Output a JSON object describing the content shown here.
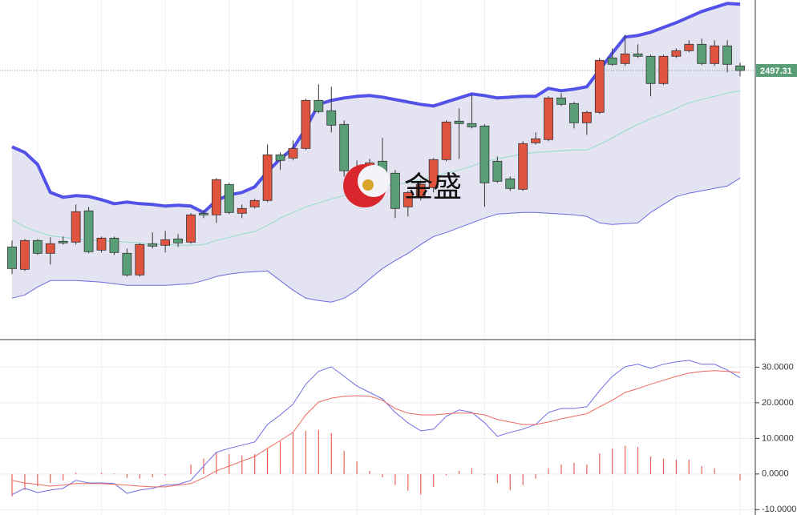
{
  "chart_data": [
    {
      "type": "candlestick",
      "watermark": "金盛",
      "ylim": [
        2162.3,
        2585.3
      ],
      "last_price": 2497.31,
      "last_price_color": "#5a9e78",
      "up_color": "#e0533f",
      "down_color": "#5a9e78",
      "band_fill": "#e3e3f1",
      "open": [
        2277,
        2249,
        2285,
        2269,
        2284,
        2283,
        2322,
        2273,
        2288,
        2269,
        2242,
        2281,
        2279,
        2287,
        2283,
        2319,
        2317,
        2355,
        2319,
        2327,
        2335,
        2392,
        2388,
        2400,
        2460,
        2447,
        2430,
        2367,
        2368,
        2384,
        2369,
        2327,
        2340,
        2351,
        2386,
        2434,
        2431,
        2428,
        2384,
        2362,
        2349,
        2407,
        2411,
        2463,
        2456,
        2432,
        2445,
        2513,
        2506,
        2518,
        2515,
        2481,
        2515,
        2522,
        2530,
        2506,
        2528,
        2503
      ],
      "high": [
        2285,
        2287,
        2287,
        2289,
        2290,
        2330,
        2327,
        2290,
        2290,
        2275,
        2282,
        2295,
        2297,
        2293,
        2319,
        2323,
        2363,
        2357,
        2330,
        2337,
        2405,
        2395,
        2410,
        2462,
        2480,
        2477,
        2435,
        2385,
        2387,
        2413,
        2373,
        2347,
        2360,
        2388,
        2435,
        2450,
        2467,
        2430,
        2390,
        2365,
        2409,
        2420,
        2465,
        2469,
        2458,
        2447,
        2513,
        2525,
        2542,
        2530,
        2517,
        2517,
        2525,
        2535,
        2537,
        2535,
        2535,
        2507
      ],
      "low": [
        2243,
        2247,
        2267,
        2255,
        2280,
        2280,
        2269,
        2270,
        2267,
        2240,
        2240,
        2275,
        2270,
        2277,
        2281,
        2313,
        2307,
        2318,
        2313,
        2325,
        2333,
        2373,
        2385,
        2398,
        2444,
        2420,
        2365,
        2330,
        2365,
        2363,
        2313,
        2315,
        2335,
        2345,
        2384,
        2387,
        2425,
        2327,
        2357,
        2347,
        2347,
        2405,
        2409,
        2453,
        2425,
        2417,
        2443,
        2503,
        2503,
        2513,
        2465,
        2479,
        2513,
        2520,
        2504,
        2503,
        2495,
        2490
      ],
      "close": [
        2250,
        2285,
        2269,
        2281,
        2282,
        2321,
        2271,
        2288,
        2270,
        2242,
        2280,
        2278,
        2286,
        2282,
        2317,
        2317,
        2361,
        2320,
        2325,
        2335,
        2392,
        2385,
        2400,
        2460,
        2446,
        2429,
        2372,
        2372,
        2382,
        2367,
        2325,
        2345,
        2355,
        2386,
        2433,
        2431,
        2427,
        2357,
        2359,
        2350,
        2406,
        2412,
        2463,
        2455,
        2432,
        2445,
        2510,
        2505,
        2518,
        2515,
        2481,
        2515,
        2522,
        2530,
        2506,
        2528,
        2505,
        2497.31
      ],
      "series": [
        {
          "color": "#5252e8",
          "width": 4,
          "values": [
            2402,
            2395,
            2380,
            2345,
            2339,
            2341,
            2340,
            2336,
            2331,
            2333,
            2331,
            2330,
            2328,
            2329,
            2328,
            2320,
            2335,
            2342,
            2345,
            2352,
            2371,
            2387,
            2400,
            2425,
            2455,
            2460,
            2463,
            2465,
            2466,
            2464,
            2461,
            2458,
            2455,
            2453,
            2458,
            2463,
            2468,
            2466,
            2463,
            2464,
            2465,
            2465,
            2475,
            2472,
            2474,
            2477,
            2498,
            2519,
            2539,
            2541,
            2545,
            2551,
            2557,
            2564,
            2571,
            2576,
            2581,
            2580
          ]
        },
        {
          "color": "#8fdcc8",
          "width": 1,
          "values": [
            2311,
            2302,
            2296,
            2291,
            2289,
            2287,
            2286,
            2285,
            2284,
            2283,
            2282,
            2280,
            2280,
            2279,
            2279,
            2280,
            2285,
            2289,
            2293,
            2296,
            2304,
            2313,
            2320,
            2327,
            2332,
            2337,
            2341,
            2345,
            2349,
            2352,
            2355,
            2357,
            2361,
            2365,
            2369,
            2373,
            2378,
            2383,
            2387,
            2390,
            2393,
            2395,
            2396,
            2397,
            2398,
            2398,
            2405,
            2413,
            2422,
            2430,
            2437,
            2443,
            2450,
            2457,
            2461,
            2465,
            2469,
            2472
          ]
        },
        {
          "color": "#6a6ae0",
          "width": 1,
          "values": [
            2213,
            2217,
            2227,
            2235,
            2235,
            2235,
            2234,
            2233,
            2231,
            2229,
            2229,
            2229,
            2229,
            2230,
            2231,
            2235,
            2240,
            2243,
            2245,
            2246,
            2247,
            2235,
            2223,
            2213,
            2210,
            2208,
            2213,
            2223,
            2237,
            2250,
            2260,
            2269,
            2280,
            2290,
            2295,
            2301,
            2307,
            2313,
            2318,
            2319,
            2320,
            2320,
            2319,
            2318,
            2317,
            2315,
            2307,
            2305,
            2306,
            2307,
            2320,
            2330,
            2340,
            2344,
            2347,
            2350,
            2353,
            2363
          ]
        }
      ]
    },
    {
      "type": "macd",
      "ylim": [
        -11.5,
        37.5
      ],
      "yticks": [
        {
          "value": 30,
          "label": "30.0000"
        },
        {
          "value": 20,
          "label": "20.0000"
        },
        {
          "value": 10,
          "label": "10.0000"
        },
        {
          "value": 0,
          "label": "0.0000"
        },
        {
          "value": -10,
          "label": "-10.0000"
        }
      ],
      "grid": true,
      "histogram": {
        "color": "#e8625a",
        "values": [
          -6.3,
          -4.5,
          -3.4,
          -2.5,
          -1.8,
          0.4,
          0,
          0.4,
          0.2,
          -1.1,
          -1.3,
          -0.9,
          -0.4,
          0,
          2.7,
          4.3,
          6.1,
          5.6,
          5.2,
          5.6,
          7.2,
          9.2,
          11.7,
          12.1,
          12.4,
          11.5,
          6.5,
          3.6,
          0.9,
          -0.9,
          -3.1,
          -4.7,
          -5.8,
          -3.6,
          -0.4,
          0.9,
          1.6,
          -0.2,
          -2.5,
          -4.5,
          -3.1,
          -1.3,
          1.6,
          2.7,
          3.1,
          2.7,
          5.8,
          7.2,
          7.9,
          7.6,
          4.9,
          4.3,
          4.0,
          4.0,
          2.2,
          1.6,
          0,
          -1.8
        ]
      },
      "series": [
        {
          "color": "#6e6ee6",
          "values": [
            -5.8,
            -4.0,
            -5.2,
            -4.5,
            -4.0,
            -1.8,
            -2.5,
            -2.5,
            -2.7,
            -5.4,
            -4.5,
            -4.0,
            -3.1,
            -2.9,
            -1.8,
            2.2,
            6.1,
            7.2,
            8.1,
            9.0,
            13.9,
            16.6,
            19.6,
            25.2,
            28.8,
            30.1,
            27.4,
            24.7,
            22.9,
            21.1,
            17.3,
            14.4,
            12.1,
            12.6,
            16.2,
            18.0,
            17.3,
            14.4,
            10.6,
            11.7,
            12.6,
            13.9,
            17.3,
            18.4,
            18.4,
            18.9,
            23.4,
            27.4,
            30.1,
            30.8,
            29.7,
            30.8,
            31.5,
            31.9,
            30.8,
            30.8,
            29.2,
            27.0
          ]
        },
        {
          "color": "#ee6a5e",
          "values": [
            -1.8,
            -2.5,
            -2.9,
            -3.4,
            -3.1,
            -2.7,
            -2.7,
            -2.7,
            -2.9,
            -3.1,
            -3.4,
            -3.6,
            -3.6,
            -3.1,
            -2.7,
            -1.1,
            0.9,
            2.2,
            3.6,
            4.9,
            7.2,
            9.4,
            11.7,
            16.6,
            20.2,
            21.3,
            21.8,
            22.0,
            21.8,
            20.7,
            18.4,
            17.1,
            16.6,
            16.6,
            16.9,
            17.1,
            17.1,
            16.6,
            15.3,
            14.6,
            13.9,
            13.9,
            14.6,
            15.5,
            16.2,
            16.9,
            18.9,
            20.7,
            22.9,
            24.0,
            25.2,
            26.3,
            27.4,
            28.3,
            28.8,
            29.0,
            28.8,
            28.5
          ]
        }
      ]
    }
  ]
}
